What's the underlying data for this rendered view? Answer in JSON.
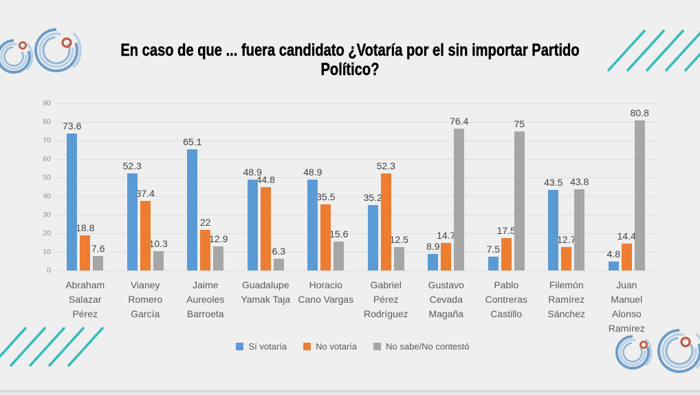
{
  "title": {
    "lines": [
      "En caso de que ... fuera candidato ¿Votaría por el sin importar Partido",
      "Político?"
    ]
  },
  "chart_data": {
    "type": "bar",
    "title": "En caso de que ... fuera candidato ¿Votaría por el sin importar Partido Político?",
    "categories": [
      "Abraham Salazar Pérez",
      "Vianey Romero García",
      "Jaime Aureoles Barroeta",
      "Guadalupe Yamak Taja",
      "Horacio Cano Vargas",
      "Gabriel Pérez Rodríguez",
      "Gustavo Cevada Magaña",
      "Pablo Contreras Castillo",
      "Filemón Ramírez Sánchez",
      "Juan Manuel Alonso Ramírez"
    ],
    "category_label_lines": [
      [
        "Abraham",
        "Salazar",
        "Pérez"
      ],
      [
        "Vianey",
        "Romero",
        "García"
      ],
      [
        "Jaime",
        "Aureoles",
        "Barroeta"
      ],
      [
        "Guadalupe",
        "Yamak Taja"
      ],
      [
        "Horacio",
        "Cano Vargas"
      ],
      [
        "Gabriel",
        "Pérez",
        "Rodríguez"
      ],
      [
        "Gustavo",
        "Cevada",
        "Magaña"
      ],
      [
        "Pablo",
        "Contreras",
        "Castillo"
      ],
      [
        "Filemón",
        "Ramírez",
        "Sánchez"
      ],
      [
        "Juan",
        "Manuel",
        "Alonso",
        "Ramírez"
      ]
    ],
    "series": [
      {
        "name": "Sí votaría",
        "color": "#5B9BD5",
        "values": [
          73.6,
          52.3,
          65.1,
          48.9,
          48.9,
          35.2,
          8.9,
          7.5,
          43.5,
          4.8
        ]
      },
      {
        "name": "No votaría",
        "color": "#ED7D31",
        "values": [
          18.8,
          37.4,
          22,
          44.8,
          35.5,
          52.3,
          14.7,
          17.5,
          12.7,
          14.4
        ]
      },
      {
        "name": "No sabe/No contestó",
        "color": "#A6A6A6",
        "values": [
          7.6,
          10.3,
          12.9,
          6.3,
          15.6,
          12.5,
          76.4,
          75,
          43.8,
          80.8
        ]
      }
    ],
    "ylim": [
      0,
      90
    ],
    "ytick_step": 10,
    "grid": true,
    "data_labels": true,
    "legend_position": "bottom"
  },
  "decor": {
    "teal": "#38bcbc",
    "swirl_blue": "#6d9cc7",
    "swirl_light_blue": "#b7cfe6",
    "swirl_mid_blue": "#8fb4d6",
    "ring_orange": "#c05b43"
  }
}
